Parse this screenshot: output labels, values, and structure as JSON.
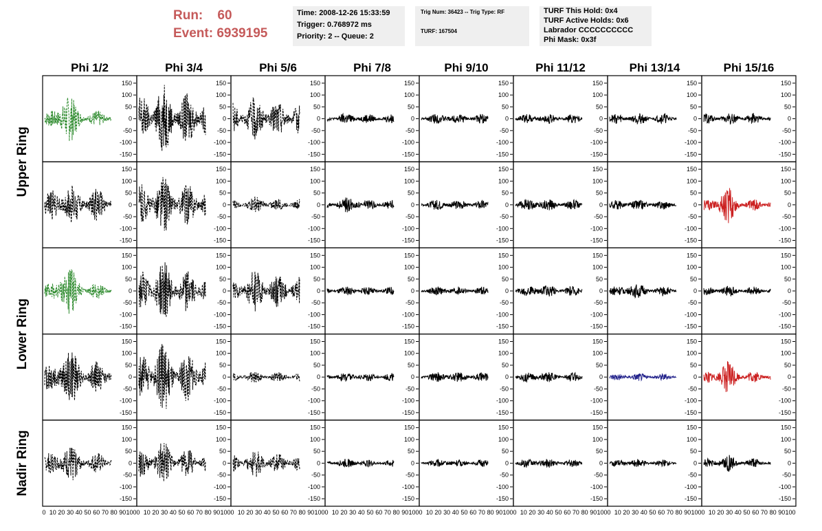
{
  "header": {
    "run_label": "Run:",
    "run_value": "60",
    "event_label": "Event:",
    "event_value": "6939195"
  },
  "info_box_1": {
    "time": "Time: 2008-12-26 15:33:59",
    "trigger": "Trigger: 0.768972 ms",
    "priority": "Priority: 2 -- Queue: 2"
  },
  "info_box_2": {
    "trig": "Trig Num: 36423 -- Trig Type: RF",
    "turf": "TURF: 167504"
  },
  "info_box_3": {
    "hold": "TURF This Hold: 0x4",
    "active": "TURF Active Holds: 0x6",
    "labrador": "Labrador CCCCCCCCCC",
    "mask": "Phi Mask: 0x3f"
  },
  "columns": [
    "Phi 1/2",
    "Phi 3/4",
    "Phi 5/6",
    "Phi 7/8",
    "Phi 9/10",
    "Phi 11/12",
    "Phi 13/14",
    "Phi 15/16"
  ],
  "rings": [
    "Upper Ring",
    "Lower Ring",
    "Nadir Ring"
  ],
  "colors": {
    "run_text": "#c55a5a",
    "black_trace": "#000000",
    "green_trace": "#2e8b2e",
    "red_trace": "#cc2222",
    "blue_trace": "#22228b"
  },
  "chart_data": {
    "type": "line",
    "xlim": [
      0,
      100
    ],
    "ylim": [
      -170,
      170
    ],
    "y_ticks": [
      -150,
      -100,
      -50,
      0,
      50,
      100,
      150
    ],
    "x_ticks_label": "0 10 20 30 40 50 60 70 80 90 100",
    "x_tick_labels": [
      "0",
      "10",
      "20",
      "30",
      "40",
      "50",
      "60",
      "70",
      "80",
      "90",
      "100"
    ],
    "rows": [
      {
        "ring": "Upper Ring",
        "panels": [
          {
            "color": "green",
            "style": "dashed",
            "amplitude": 35,
            "burst": 110
          },
          {
            "color": "black",
            "style": "dashed",
            "amplitude": 110,
            "burst": 150
          },
          {
            "color": "black",
            "style": "dashed",
            "amplitude": 75,
            "burst": 95
          },
          {
            "color": "black",
            "style": "solid",
            "amplitude": 20,
            "burst": 25
          },
          {
            "color": "black",
            "style": "solid",
            "amplitude": 20,
            "burst": 25
          },
          {
            "color": "black",
            "style": "solid",
            "amplitude": 20,
            "burst": 25
          },
          {
            "color": "black",
            "style": "solid",
            "amplitude": 22,
            "burst": 25
          },
          {
            "color": "black",
            "style": "solid",
            "amplitude": 22,
            "burst": 25
          }
        ]
      },
      {
        "ring": "Upper Ring",
        "panels": [
          {
            "color": "black",
            "style": "dashed",
            "amplitude": 70,
            "burst": 90
          },
          {
            "color": "black",
            "style": "dashed",
            "amplitude": 90,
            "burst": 130
          },
          {
            "color": "black",
            "style": "dashed",
            "amplitude": 25,
            "burst": 35
          },
          {
            "color": "black",
            "style": "solid",
            "amplitude": 22,
            "burst": 35
          },
          {
            "color": "black",
            "style": "solid",
            "amplitude": 20,
            "burst": 25
          },
          {
            "color": "black",
            "style": "solid",
            "amplitude": 22,
            "burst": 30
          },
          {
            "color": "black",
            "style": "solid",
            "amplitude": 20,
            "burst": 25
          },
          {
            "color": "red",
            "style": "solid",
            "amplitude": 25,
            "burst": 80
          }
        ]
      },
      {
        "ring": "Lower Ring",
        "panels": [
          {
            "color": "green",
            "style": "dashed",
            "amplitude": 35,
            "burst": 110
          },
          {
            "color": "black",
            "style": "dashed",
            "amplitude": 90,
            "burst": 130
          },
          {
            "color": "black",
            "style": "dashed",
            "amplitude": 70,
            "burst": 90
          },
          {
            "color": "black",
            "style": "solid",
            "amplitude": 18,
            "burst": 22
          },
          {
            "color": "black",
            "style": "solid",
            "amplitude": 18,
            "burst": 22
          },
          {
            "color": "black",
            "style": "solid",
            "amplitude": 22,
            "burst": 30
          },
          {
            "color": "black",
            "style": "solid",
            "amplitude": 22,
            "burst": 35
          },
          {
            "color": "black",
            "style": "solid",
            "amplitude": 18,
            "burst": 25
          }
        ]
      },
      {
        "ring": "Lower Ring",
        "panels": [
          {
            "color": "black",
            "style": "dashed",
            "amplitude": 70,
            "burst": 130
          },
          {
            "color": "black",
            "style": "dashed",
            "amplitude": 110,
            "burst": 150
          },
          {
            "color": "black",
            "style": "dashed",
            "amplitude": 20,
            "burst": 25
          },
          {
            "color": "black",
            "style": "solid",
            "amplitude": 18,
            "burst": 22
          },
          {
            "color": "black",
            "style": "solid",
            "amplitude": 20,
            "burst": 25
          },
          {
            "color": "black",
            "style": "solid",
            "amplitude": 20,
            "burst": 25
          },
          {
            "color": "blue",
            "style": "solid",
            "amplitude": 15,
            "burst": 18
          },
          {
            "color": "red",
            "style": "solid",
            "amplitude": 25,
            "burst": 70
          }
        ]
      },
      {
        "ring": "Nadir Ring",
        "panels": [
          {
            "color": "black",
            "style": "dashed",
            "amplitude": 45,
            "burst": 85
          },
          {
            "color": "black",
            "style": "dashed",
            "amplitude": 60,
            "burst": 95
          },
          {
            "color": "black",
            "style": "dashed",
            "amplitude": 40,
            "burst": 60
          },
          {
            "color": "black",
            "style": "solid",
            "amplitude": 15,
            "burst": 20
          },
          {
            "color": "black",
            "style": "solid",
            "amplitude": 15,
            "burst": 20
          },
          {
            "color": "black",
            "style": "solid",
            "amplitude": 18,
            "burst": 22
          },
          {
            "color": "black",
            "style": "solid",
            "amplitude": 15,
            "burst": 20
          },
          {
            "color": "black",
            "style": "solid",
            "amplitude": 20,
            "burst": 40
          }
        ]
      }
    ]
  }
}
